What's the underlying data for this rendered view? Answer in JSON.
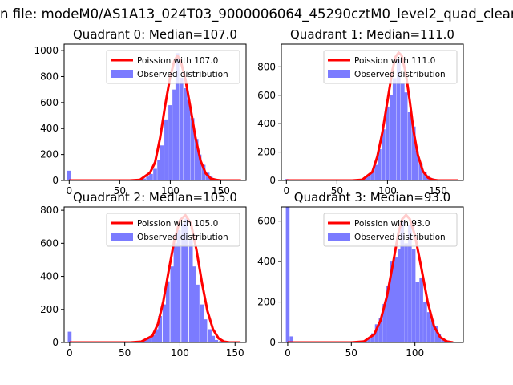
{
  "figure": {
    "suptitle": "n file: modeM0/AS1A13_024T03_9000006064_45290cztM0_level2_quad_clean"
  },
  "colors": {
    "poisson_line": "#ff0000",
    "histogram": "#7b7bff",
    "axes": "#000000"
  },
  "chart_data": [
    {
      "type": "bar",
      "title": "Quadrant 0: Median=107.0",
      "xlim": [
        -5,
        175
      ],
      "ylim": [
        0,
        1050
      ],
      "xticks": [
        0,
        50,
        100,
        150
      ],
      "yticks": [
        0,
        200,
        400,
        600,
        800,
        1000
      ],
      "legend": [
        "Poission with 107.0",
        "Observed distribution"
      ],
      "legend_position": "top-right",
      "bin_width": 3.7,
      "hist": [
        [
          0,
          75
        ],
        [
          70,
          10
        ],
        [
          74,
          15
        ],
        [
          78,
          30
        ],
        [
          81,
          50
        ],
        [
          85,
          90
        ],
        [
          89,
          160
        ],
        [
          92,
          270
        ],
        [
          96,
          470
        ],
        [
          100,
          580
        ],
        [
          104,
          700
        ],
        [
          107,
          980
        ],
        [
          111,
          790
        ],
        [
          115,
          710
        ],
        [
          118,
          620
        ],
        [
          122,
          480
        ],
        [
          126,
          320
        ],
        [
          129,
          200
        ],
        [
          133,
          120
        ],
        [
          137,
          60
        ],
        [
          140,
          30
        ],
        [
          144,
          15
        ],
        [
          148,
          8
        ],
        [
          25,
          5
        ],
        [
          50,
          7
        ],
        [
          60,
          8
        ]
      ],
      "poisson": [
        [
          0,
          0
        ],
        [
          60,
          0
        ],
        [
          70,
          5
        ],
        [
          80,
          60
        ],
        [
          85,
          140
        ],
        [
          90,
          330
        ],
        [
          95,
          580
        ],
        [
          100,
          800
        ],
        [
          104,
          920
        ],
        [
          107,
          960
        ],
        [
          110,
          930
        ],
        [
          115,
          780
        ],
        [
          120,
          560
        ],
        [
          125,
          330
        ],
        [
          130,
          150
        ],
        [
          135,
          55
        ],
        [
          140,
          15
        ],
        [
          145,
          5
        ],
        [
          150,
          0
        ],
        [
          170,
          0
        ]
      ]
    },
    {
      "type": "bar",
      "title": "Quadrant 1: Median=111.0",
      "xlim": [
        -5,
        175
      ],
      "ylim": [
        0,
        960
      ],
      "xticks": [
        0,
        50,
        100,
        150
      ],
      "yticks": [
        0,
        200,
        400,
        600,
        800
      ],
      "legend": [
        "Poission with 111.0",
        "Observed distribution"
      ],
      "legend_position": "top-right",
      "bin_width": 3.7,
      "hist": [
        [
          0,
          10
        ],
        [
          60,
          8
        ],
        [
          70,
          8
        ],
        [
          78,
          15
        ],
        [
          81,
          35
        ],
        [
          85,
          60
        ],
        [
          89,
          110
        ],
        [
          92,
          220
        ],
        [
          96,
          360
        ],
        [
          100,
          520
        ],
        [
          104,
          600
        ],
        [
          107,
          720
        ],
        [
          111,
          850
        ],
        [
          115,
          680
        ],
        [
          118,
          620
        ],
        [
          122,
          480
        ],
        [
          126,
          380
        ],
        [
          129,
          210
        ],
        [
          133,
          120
        ],
        [
          137,
          60
        ],
        [
          140,
          35
        ],
        [
          144,
          15
        ],
        [
          148,
          8
        ],
        [
          30,
          5
        ],
        [
          50,
          6
        ]
      ],
      "poisson": [
        [
          0,
          0
        ],
        [
          65,
          0
        ],
        [
          75,
          5
        ],
        [
          85,
          60
        ],
        [
          90,
          170
        ],
        [
          95,
          340
        ],
        [
          100,
          560
        ],
        [
          105,
          780
        ],
        [
          108,
          870
        ],
        [
          111,
          900
        ],
        [
          114,
          880
        ],
        [
          118,
          760
        ],
        [
          122,
          560
        ],
        [
          126,
          340
        ],
        [
          130,
          180
        ],
        [
          135,
          65
        ],
        [
          140,
          20
        ],
        [
          145,
          5
        ],
        [
          150,
          0
        ],
        [
          170,
          0
        ]
      ]
    },
    {
      "type": "bar",
      "title": "Quadrant 2: Median=105.0",
      "xlim": [
        -5,
        160
      ],
      "ylim": [
        0,
        820
      ],
      "xticks": [
        0,
        50,
        100,
        150
      ],
      "yticks": [
        0,
        200,
        400,
        600,
        800
      ],
      "legend": [
        "Poission with 105.0",
        "Observed distribution"
      ],
      "legend_position": "top-right",
      "bin_width": 3.4,
      "hist": [
        [
          0,
          65
        ],
        [
          65,
          8
        ],
        [
          69,
          12
        ],
        [
          72,
          25
        ],
        [
          76,
          45
        ],
        [
          79,
          80
        ],
        [
          82,
          160
        ],
        [
          86,
          230
        ],
        [
          89,
          370
        ],
        [
          93,
          460
        ],
        [
          96,
          600
        ],
        [
          99,
          680
        ],
        [
          103,
          720
        ],
        [
          106,
          750
        ],
        [
          110,
          620
        ],
        [
          113,
          460
        ],
        [
          116,
          350
        ],
        [
          120,
          230
        ],
        [
          123,
          140
        ],
        [
          127,
          80
        ],
        [
          130,
          40
        ],
        [
          133,
          15
        ],
        [
          137,
          8
        ],
        [
          20,
          5
        ],
        [
          40,
          6
        ]
      ],
      "poisson": [
        [
          0,
          0
        ],
        [
          55,
          0
        ],
        [
          65,
          5
        ],
        [
          75,
          40
        ],
        [
          80,
          110
        ],
        [
          85,
          250
        ],
        [
          90,
          440
        ],
        [
          95,
          620
        ],
        [
          100,
          740
        ],
        [
          105,
          770
        ],
        [
          110,
          720
        ],
        [
          115,
          560
        ],
        [
          120,
          360
        ],
        [
          125,
          190
        ],
        [
          130,
          80
        ],
        [
          135,
          25
        ],
        [
          140,
          5
        ],
        [
          145,
          0
        ],
        [
          155,
          0
        ]
      ]
    },
    {
      "type": "bar",
      "title": "Quadrant 3: Median=93.0",
      "xlim": [
        -5,
        138
      ],
      "ylim": [
        0,
        670
      ],
      "xticks": [
        0,
        50,
        100
      ],
      "yticks": [
        0,
        200,
        400,
        600
      ],
      "legend": [
        "Poission with 93.0",
        "Observed distribution"
      ],
      "legend_position": "top-right",
      "bin_width": 2.9,
      "hist": [
        [
          0,
          700
        ],
        [
          3,
          30
        ],
        [
          50,
          5
        ],
        [
          56,
          8
        ],
        [
          61,
          12
        ],
        [
          64,
          22
        ],
        [
          67,
          45
        ],
        [
          70,
          90
        ],
        [
          73,
          120
        ],
        [
          76,
          190
        ],
        [
          79,
          280
        ],
        [
          82,
          400
        ],
        [
          85,
          420
        ],
        [
          88,
          460
        ],
        [
          90,
          600
        ],
        [
          93,
          490
        ],
        [
          96,
          580
        ],
        [
          99,
          460
        ],
        [
          102,
          300
        ],
        [
          105,
          320
        ],
        [
          108,
          200
        ],
        [
          111,
          150
        ],
        [
          114,
          110
        ],
        [
          117,
          80
        ],
        [
          119,
          40
        ],
        [
          122,
          15
        ],
        [
          30,
          5
        ]
      ],
      "poisson": [
        [
          0,
          0
        ],
        [
          50,
          0
        ],
        [
          60,
          5
        ],
        [
          68,
          40
        ],
        [
          73,
          110
        ],
        [
          78,
          230
        ],
        [
          83,
          400
        ],
        [
          87,
          540
        ],
        [
          90,
          610
        ],
        [
          93,
          630
        ],
        [
          96,
          610
        ],
        [
          100,
          530
        ],
        [
          105,
          370
        ],
        [
          110,
          200
        ],
        [
          115,
          80
        ],
        [
          120,
          25
        ],
        [
          125,
          5
        ],
        [
          130,
          0
        ]
      ]
    }
  ]
}
